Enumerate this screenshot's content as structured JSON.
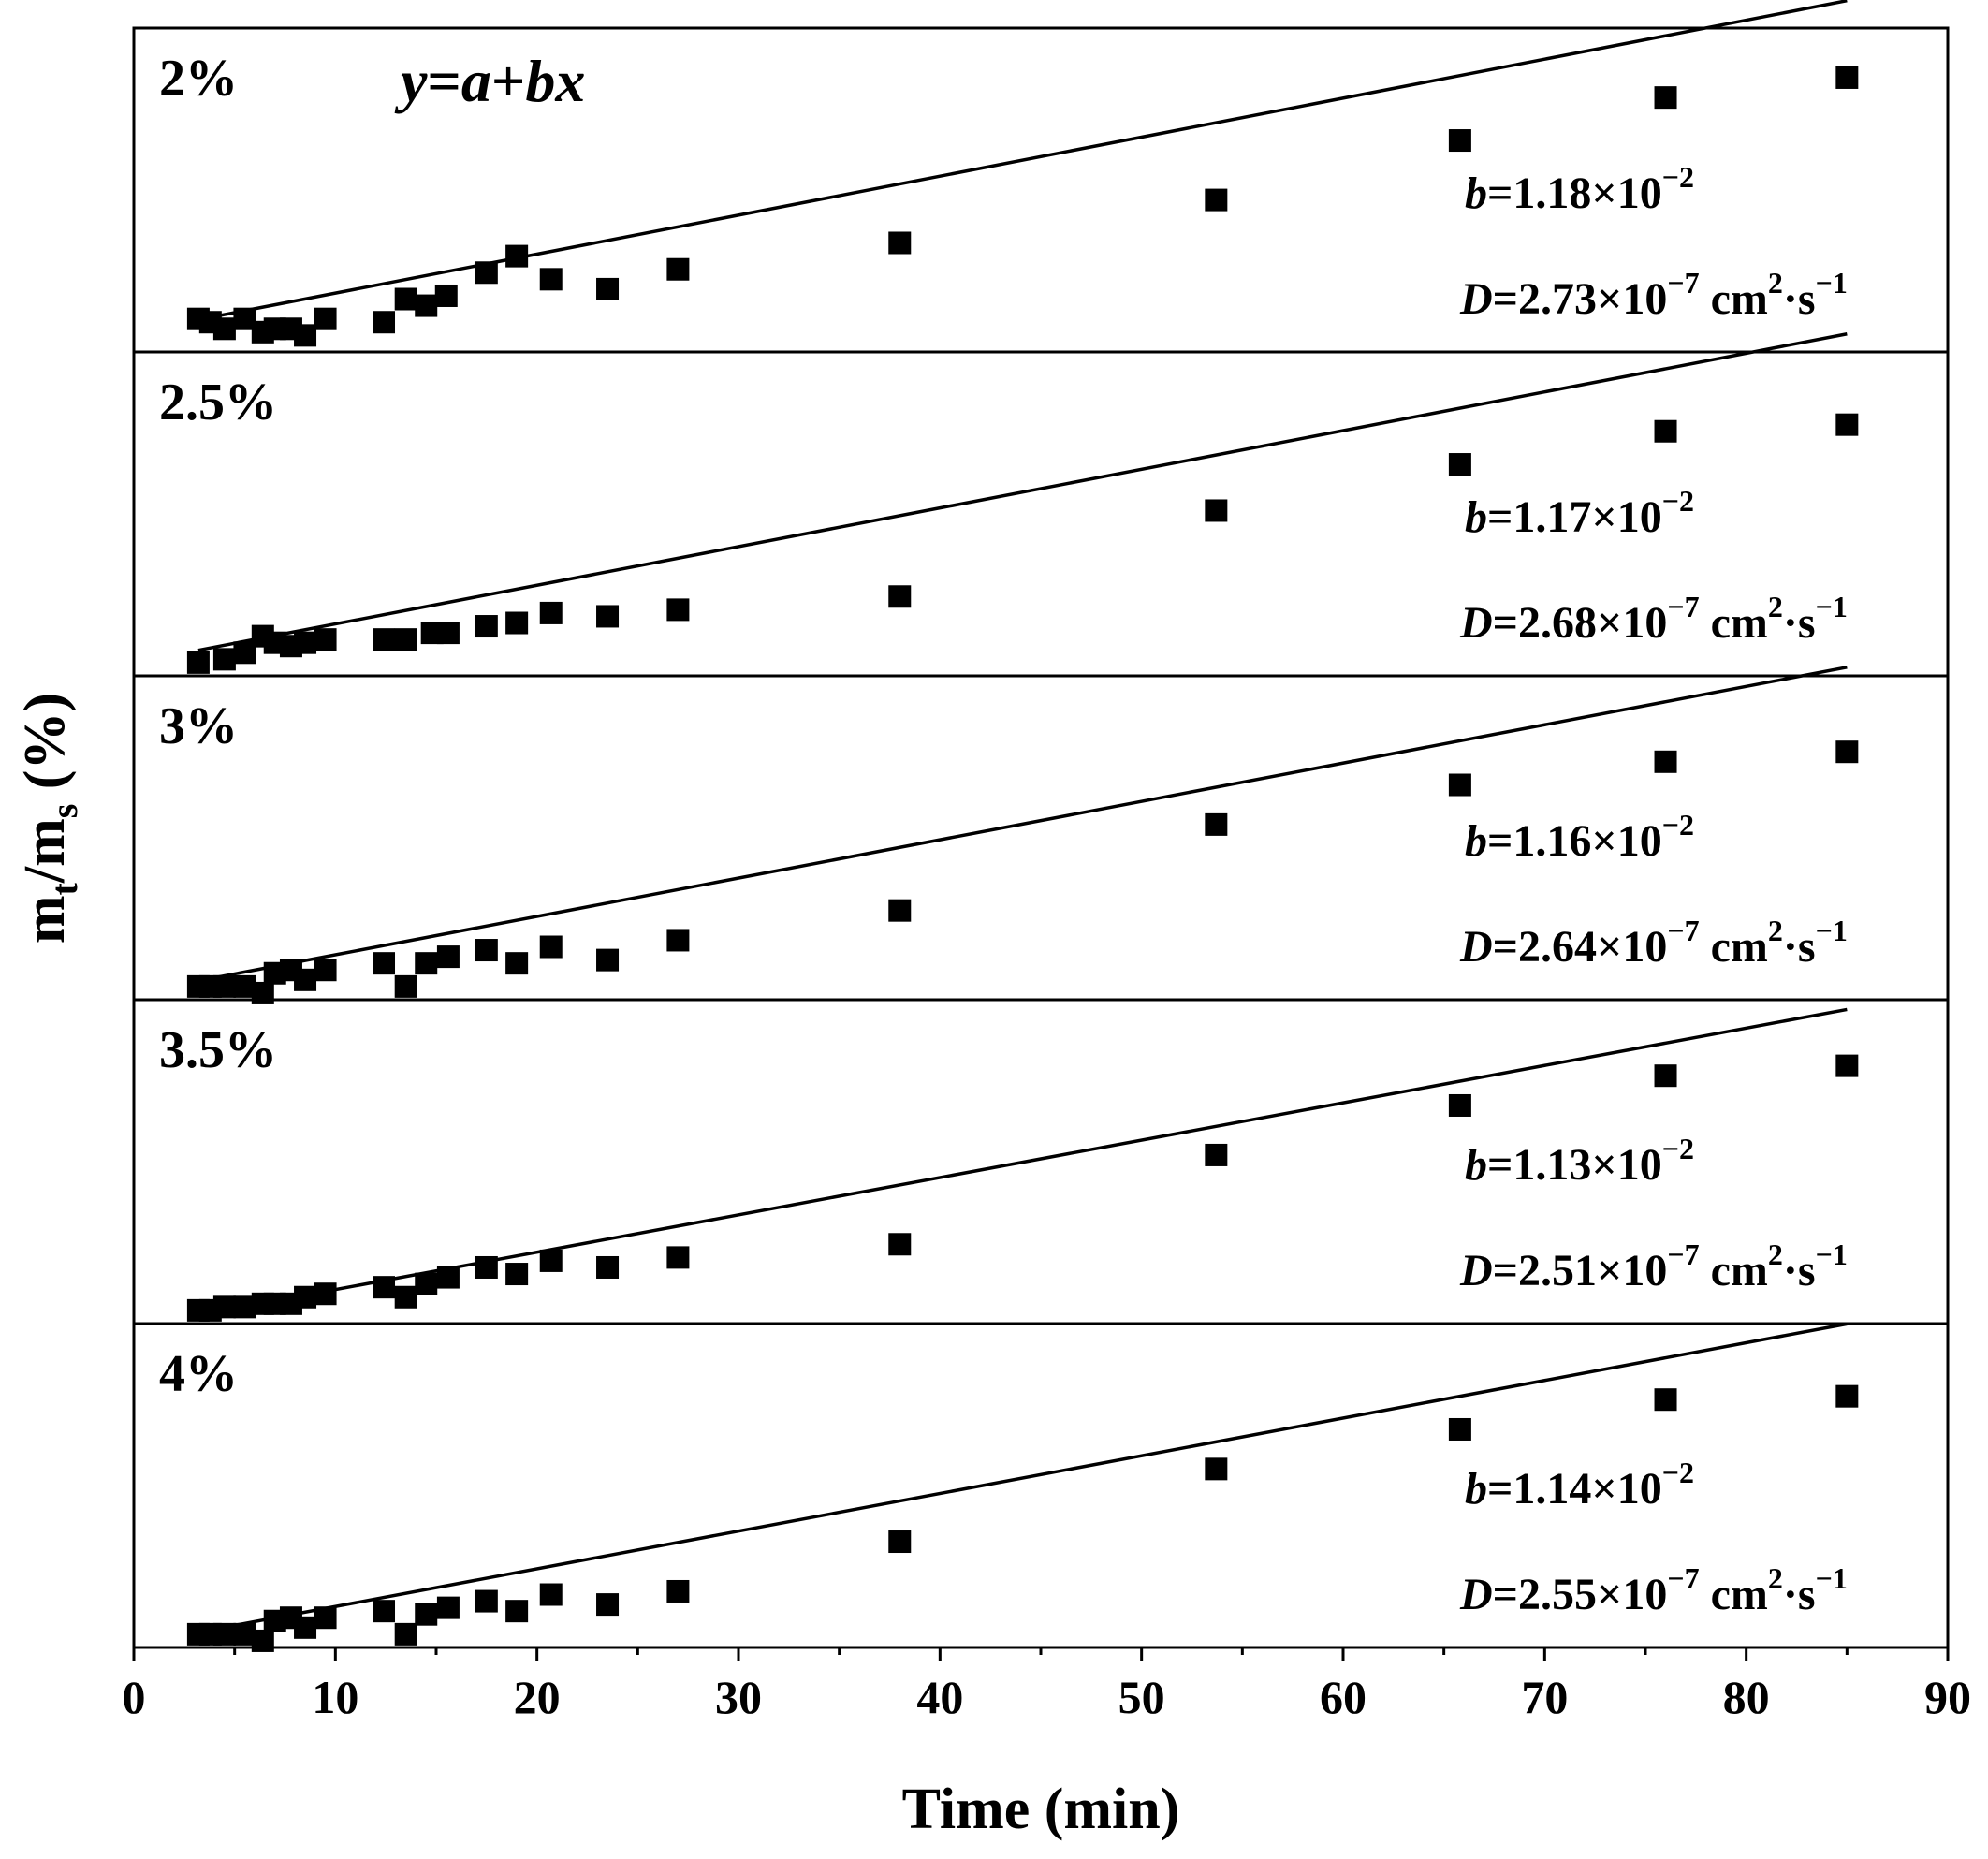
{
  "chart_data": {
    "type": "scatter",
    "title": "",
    "xlabel": "Time (min)",
    "ylabel": {
      "main": "m",
      "sub1": "t",
      "slash": "/m",
      "sub2": "s",
      "unit": " (%)"
    },
    "xlim": [
      0,
      90
    ],
    "xticks": [
      "0",
      "10",
      "20",
      "30",
      "40",
      "50",
      "60",
      "70",
      "80",
      "90"
    ],
    "equation": {
      "y": "y",
      "eq": "=",
      "a": "a",
      "plus": "+",
      "bx": "bx"
    },
    "panels": [
      {
        "label": "2%",
        "b_label": {
          "sym": "b",
          "mant": "=1.18×10",
          "exp": "−2"
        },
        "d_label": {
          "sym": "D",
          "mant": "=2.73×10",
          "exp": "−7",
          "unit1": " cm",
          "unit1_exp": "2",
          "unit2": "·s",
          "unit2_exp": "−1"
        },
        "fit": {
          "a": 0.1,
          "b": 1.18,
          "x_range": [
            3.2,
            85
          ]
        },
        "ylim": [
          -0.2,
          4.7
        ],
        "points": [
          {
            "x": 3.2,
            "y": 0.3
          },
          {
            "x": 3.8,
            "y": 0.25
          },
          {
            "x": 4.5,
            "y": 0.15
          },
          {
            "x": 5.5,
            "y": 0.3
          },
          {
            "x": 6.4,
            "y": 0.1
          },
          {
            "x": 7.0,
            "y": 0.15
          },
          {
            "x": 7.8,
            "y": 0.15
          },
          {
            "x": 8.5,
            "y": 0.05
          },
          {
            "x": 9.5,
            "y": 0.3
          },
          {
            "x": 12.4,
            "y": 0.25
          },
          {
            "x": 13.5,
            "y": 0.6
          },
          {
            "x": 14.5,
            "y": 0.5
          },
          {
            "x": 15.5,
            "y": 0.65
          },
          {
            "x": 17.5,
            "y": 1.0
          },
          {
            "x": 19.0,
            "y": 1.25
          },
          {
            "x": 20.7,
            "y": 0.9
          },
          {
            "x": 23.5,
            "y": 0.75
          },
          {
            "x": 27.0,
            "y": 1.05
          },
          {
            "x": 38.0,
            "y": 1.45
          },
          {
            "x": 53.7,
            "y": 2.1
          },
          {
            "x": 65.8,
            "y": 3.0
          },
          {
            "x": 76.0,
            "y": 3.65
          },
          {
            "x": 85.0,
            "y": 3.95
          }
        ]
      },
      {
        "label": "2.5%",
        "b_label": {
          "sym": "b",
          "mant": "=1.17×10",
          "exp": "−2"
        },
        "d_label": {
          "sym": "D",
          "mant": "=2.68×10",
          "exp": "−7",
          "unit1": " cm",
          "unit1_exp": "2",
          "unit2": "·s",
          "unit2_exp": "−1"
        },
        "fit": {
          "a": 0.0,
          "b": 1.17,
          "x_range": [
            3.2,
            85
          ]
        },
        "ylim": [
          -0.2,
          4.7
        ],
        "points": [
          {
            "x": 3.2,
            "y": 0.0
          },
          {
            "x": 4.5,
            "y": 0.05
          },
          {
            "x": 5.5,
            "y": 0.15
          },
          {
            "x": 6.4,
            "y": 0.4
          },
          {
            "x": 7.0,
            "y": 0.3
          },
          {
            "x": 7.8,
            "y": 0.25
          },
          {
            "x": 8.5,
            "y": 0.3
          },
          {
            "x": 9.5,
            "y": 0.35
          },
          {
            "x": 12.4,
            "y": 0.35
          },
          {
            "x": 13.5,
            "y": 0.35
          },
          {
            "x": 14.8,
            "y": 0.45
          },
          {
            "x": 15.6,
            "y": 0.45
          },
          {
            "x": 17.5,
            "y": 0.55
          },
          {
            "x": 19.0,
            "y": 0.6
          },
          {
            "x": 20.7,
            "y": 0.75
          },
          {
            "x": 23.5,
            "y": 0.7
          },
          {
            "x": 27.0,
            "y": 0.8
          },
          {
            "x": 38.0,
            "y": 1.0
          },
          {
            "x": 53.7,
            "y": 2.3
          },
          {
            "x": 65.8,
            "y": 3.0
          },
          {
            "x": 76.0,
            "y": 3.5
          },
          {
            "x": 85.0,
            "y": 3.6
          }
        ]
      },
      {
        "label": "3%",
        "b_label": {
          "sym": "b",
          "mant": "=1.16×10",
          "exp": "−2"
        },
        "d_label": {
          "sym": "D",
          "mant": "=2.64×10",
          "exp": "−7",
          "unit1": " cm",
          "unit1_exp": "2",
          "unit2": "·s",
          "unit2_exp": "−1"
        },
        "fit": {
          "a": -0.1,
          "b": 1.16,
          "x_range": [
            3.2,
            85
          ]
        },
        "ylim": [
          -0.2,
          4.7
        ],
        "points": [
          {
            "x": 3.2,
            "y": 0.0
          },
          {
            "x": 3.8,
            "y": 0.0
          },
          {
            "x": 4.5,
            "y": 0.0
          },
          {
            "x": 5.5,
            "y": 0.0
          },
          {
            "x": 6.4,
            "y": -0.1
          },
          {
            "x": 7.0,
            "y": 0.2
          },
          {
            "x": 7.8,
            "y": 0.25
          },
          {
            "x": 8.5,
            "y": 0.1
          },
          {
            "x": 9.5,
            "y": 0.25
          },
          {
            "x": 12.4,
            "y": 0.35
          },
          {
            "x": 13.5,
            "y": 0.0
          },
          {
            "x": 14.5,
            "y": 0.35
          },
          {
            "x": 15.6,
            "y": 0.45
          },
          {
            "x": 17.5,
            "y": 0.55
          },
          {
            "x": 19.0,
            "y": 0.35
          },
          {
            "x": 20.7,
            "y": 0.6
          },
          {
            "x": 23.5,
            "y": 0.4
          },
          {
            "x": 27.0,
            "y": 0.7
          },
          {
            "x": 38.0,
            "y": 1.15
          },
          {
            "x": 53.7,
            "y": 2.45
          },
          {
            "x": 65.8,
            "y": 3.05
          },
          {
            "x": 76.0,
            "y": 3.4
          },
          {
            "x": 85.0,
            "y": 3.55
          }
        ]
      },
      {
        "label": "3.5%",
        "b_label": {
          "sym": "b",
          "mant": "=1.13×10",
          "exp": "−2"
        },
        "d_label": {
          "sym": "D",
          "mant": "=2.51×10",
          "exp": "−7",
          "unit1": " cm",
          "unit1_exp": "2",
          "unit2": "·s",
          "unit2_exp": "−1"
        },
        "fit": {
          "a": -0.25,
          "b": 1.13,
          "x_range": [
            3.2,
            85
          ]
        },
        "ylim": [
          -0.2,
          4.7
        ],
        "points": [
          {
            "x": 3.2,
            "y": 0.0
          },
          {
            "x": 3.8,
            "y": 0.0
          },
          {
            "x": 4.5,
            "y": 0.05
          },
          {
            "x": 5.5,
            "y": 0.05
          },
          {
            "x": 6.4,
            "y": 0.1
          },
          {
            "x": 7.0,
            "y": 0.1
          },
          {
            "x": 7.8,
            "y": 0.1
          },
          {
            "x": 8.5,
            "y": 0.2
          },
          {
            "x": 9.5,
            "y": 0.25
          },
          {
            "x": 12.4,
            "y": 0.35
          },
          {
            "x": 13.5,
            "y": 0.2
          },
          {
            "x": 14.5,
            "y": 0.4
          },
          {
            "x": 15.6,
            "y": 0.5
          },
          {
            "x": 17.5,
            "y": 0.65
          },
          {
            "x": 19.0,
            "y": 0.55
          },
          {
            "x": 20.7,
            "y": 0.75
          },
          {
            "x": 23.5,
            "y": 0.65
          },
          {
            "x": 27.0,
            "y": 0.8
          },
          {
            "x": 38.0,
            "y": 1.0
          },
          {
            "x": 53.7,
            "y": 2.35
          },
          {
            "x": 65.8,
            "y": 3.1
          },
          {
            "x": 76.0,
            "y": 3.55
          },
          {
            "x": 85.0,
            "y": 3.7
          }
        ]
      },
      {
        "label": "4%",
        "b_label": {
          "sym": "b",
          "mant": "=1.14×10",
          "exp": "−2"
        },
        "d_label": {
          "sym": "D",
          "mant": "=2.55×10",
          "exp": "−7",
          "unit1": " cm",
          "unit1_exp": "2",
          "unit2": "·s",
          "unit2_exp": "−1"
        },
        "fit": {
          "a": -0.15,
          "b": 1.14,
          "x_range": [
            3.2,
            85
          ]
        },
        "ylim": [
          -0.2,
          4.7
        ],
        "points": [
          {
            "x": 3.2,
            "y": 0.0
          },
          {
            "x": 3.8,
            "y": 0.0
          },
          {
            "x": 4.5,
            "y": 0.0
          },
          {
            "x": 5.5,
            "y": 0.0
          },
          {
            "x": 6.4,
            "y": -0.1
          },
          {
            "x": 7.0,
            "y": 0.2
          },
          {
            "x": 7.8,
            "y": 0.25
          },
          {
            "x": 8.5,
            "y": 0.1
          },
          {
            "x": 9.5,
            "y": 0.25
          },
          {
            "x": 12.4,
            "y": 0.35
          },
          {
            "x": 13.5,
            "y": 0.0
          },
          {
            "x": 14.5,
            "y": 0.3
          },
          {
            "x": 15.6,
            "y": 0.4
          },
          {
            "x": 17.5,
            "y": 0.5
          },
          {
            "x": 19.0,
            "y": 0.35
          },
          {
            "x": 20.7,
            "y": 0.6
          },
          {
            "x": 23.5,
            "y": 0.45
          },
          {
            "x": 27.0,
            "y": 0.65
          },
          {
            "x": 38.0,
            "y": 1.4
          },
          {
            "x": 53.7,
            "y": 2.5
          },
          {
            "x": 65.8,
            "y": 3.1
          },
          {
            "x": 76.0,
            "y": 3.55
          },
          {
            "x": 85.0,
            "y": 3.6
          }
        ]
      }
    ]
  }
}
